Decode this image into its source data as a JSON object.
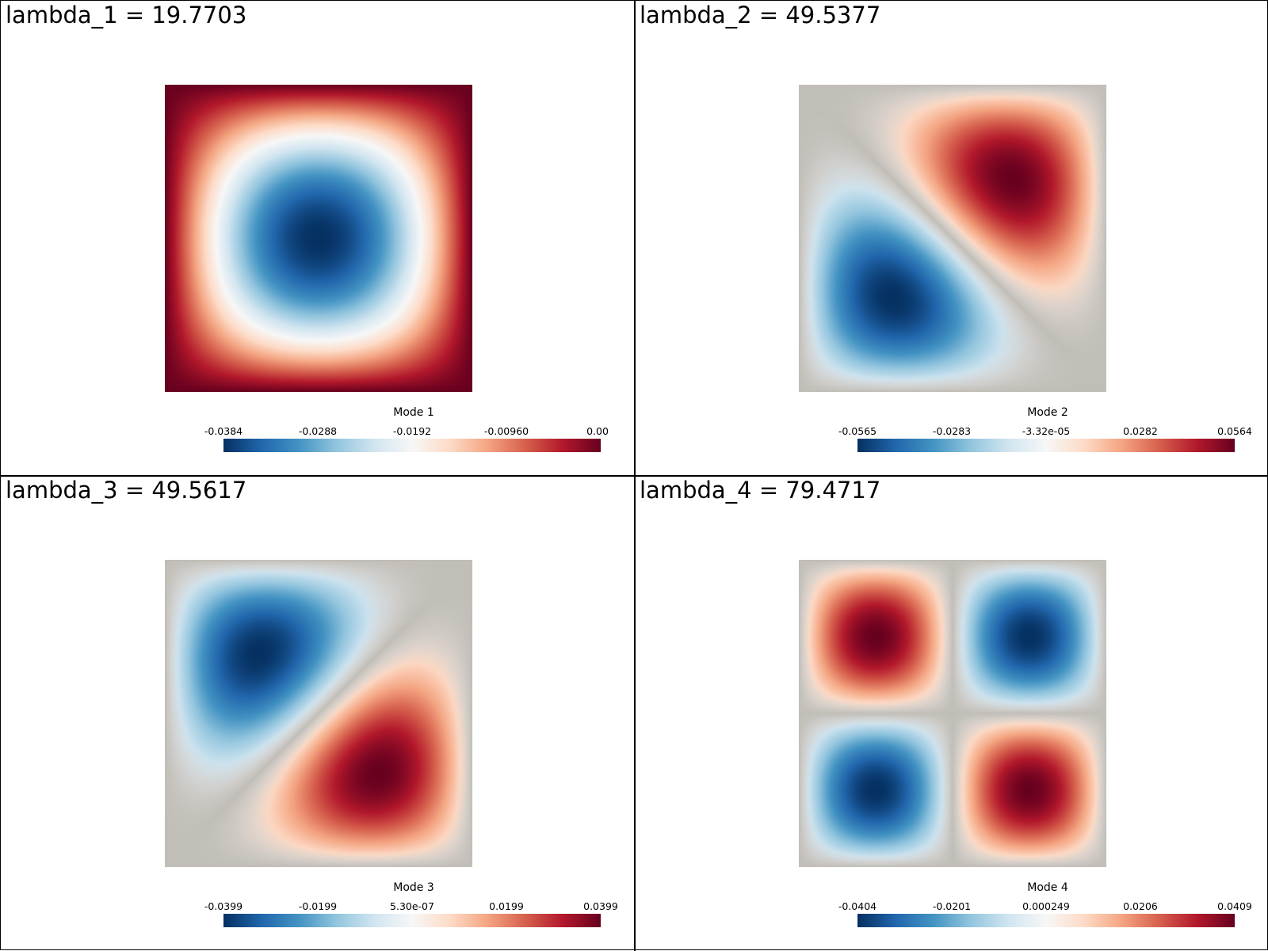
{
  "colors": {
    "negative_extreme": "#053061",
    "neutral": "#f7f7f7",
    "positive_extreme": "#67001f",
    "background_zero": "#c1bdb7"
  },
  "panels": [
    {
      "title": "lambda_1 = 19.7703",
      "legend": {
        "title": "Mode 1",
        "ticks": [
          "-0.0384",
          "-0.0288",
          "-0.0192",
          "-0.00960",
          "0.00"
        ],
        "range": [
          -0.0384,
          0.0
        ]
      },
      "field": "mode1"
    },
    {
      "title": "lambda_2 = 49.5377",
      "legend": {
        "title": "Mode 2",
        "ticks": [
          "-0.0565",
          "-0.0283",
          "-3.32e-05",
          "0.0282",
          "0.0564"
        ],
        "range": [
          -0.0565,
          0.0564
        ]
      },
      "field": "mode2"
    },
    {
      "title": "lambda_3 = 49.5617",
      "legend": {
        "title": "Mode 3",
        "ticks": [
          "-0.0399",
          "-0.0199",
          "5.30e-07",
          "0.0199",
          "0.0399"
        ],
        "range": [
          -0.0399,
          0.0399
        ]
      },
      "field": "mode3"
    },
    {
      "title": "lambda_4 = 79.4717",
      "legend": {
        "title": "Mode 4",
        "ticks": [
          "-0.0404",
          "-0.0201",
          "0.000249",
          "0.0206",
          "0.0409"
        ],
        "range": [
          -0.0404,
          0.0409
        ]
      },
      "field": "mode4"
    }
  ]
}
